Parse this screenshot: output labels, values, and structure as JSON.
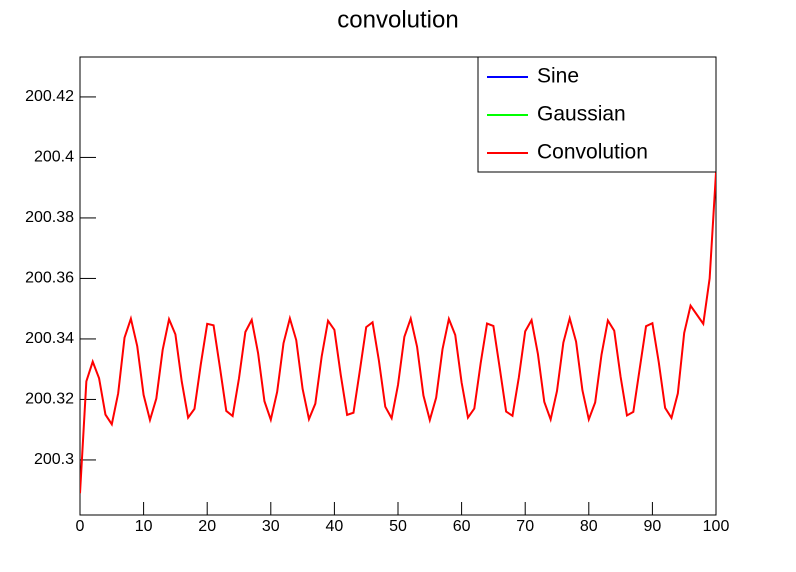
{
  "chart_data": {
    "type": "line",
    "title": "convolution",
    "x": [
      0,
      1,
      2,
      3,
      4,
      5,
      6,
      7,
      8,
      9,
      10,
      11,
      12,
      13,
      14,
      15,
      16,
      17,
      18,
      19,
      20,
      21,
      22,
      23,
      24,
      25,
      26,
      27,
      28,
      29,
      30,
      31,
      32,
      33,
      34,
      35,
      36,
      37,
      38,
      39,
      40,
      41,
      42,
      43,
      44,
      45,
      46,
      47,
      48,
      49,
      50,
      51,
      52,
      53,
      54,
      55,
      56,
      57,
      58,
      59,
      60,
      61,
      62,
      63,
      64,
      65,
      66,
      67,
      68,
      69,
      70,
      71,
      72,
      73,
      74,
      75,
      76,
      77,
      78,
      79,
      80,
      81,
      82,
      83,
      84,
      85,
      86,
      87,
      88,
      89,
      90,
      91,
      92,
      93,
      94,
      95,
      96,
      97,
      98,
      99,
      100
    ],
    "series": [
      {
        "name": "Sine",
        "color": "#0000ff"
      },
      {
        "name": "Gaussian",
        "color": "#00ff00"
      },
      {
        "name": "Convolution",
        "color": "#ff0000",
        "values": [
          200.289,
          200.326,
          200.3325,
          200.327,
          200.315,
          200.3118,
          200.322,
          200.3404,
          200.3467,
          200.3376,
          200.3215,
          200.3132,
          200.3203,
          200.3364,
          200.3465,
          200.3415,
          200.3259,
          200.314,
          200.3169,
          200.3317,
          200.345,
          200.3445,
          200.3306,
          200.3162,
          200.3145,
          200.327,
          200.3423,
          200.3463,
          200.3353,
          200.3194,
          200.3133,
          200.3225,
          200.3386,
          200.3468,
          200.3396,
          200.3235,
          200.3135,
          200.3186,
          200.3342,
          200.346,
          200.343,
          200.3281,
          200.3149,
          200.3156,
          200.3295,
          200.3439,
          200.3455,
          200.3328,
          200.3176,
          200.3138,
          200.3248,
          200.3407,
          200.3467,
          200.3374,
          200.3213,
          200.3132,
          200.3206,
          200.3366,
          200.3466,
          200.3413,
          200.3256,
          200.314,
          200.317,
          200.332,
          200.3451,
          200.3443,
          200.3303,
          200.316,
          200.3146,
          200.3273,
          200.3425,
          200.3462,
          200.335,
          200.3192,
          200.3134,
          200.3228,
          200.3388,
          200.3468,
          200.3391,
          200.323,
          200.3134,
          200.319,
          200.3348,
          200.3461,
          200.3427,
          200.3275,
          200.3147,
          200.3159,
          200.3301,
          200.3442,
          200.3452,
          200.3323,
          200.3172,
          200.3139,
          200.322,
          200.342,
          200.351,
          200.348,
          200.345,
          200.36,
          200.395
        ]
      }
    ],
    "xlim": [
      0,
      100
    ],
    "xticks": [
      0,
      10,
      20,
      30,
      40,
      50,
      60,
      70,
      80,
      90,
      100
    ],
    "ylim": [
      200.2818,
      200.4332
    ],
    "yticks": [
      200.3,
      200.32,
      200.34,
      200.36,
      200.38,
      200.4,
      200.42
    ],
    "legend": "top-right"
  }
}
